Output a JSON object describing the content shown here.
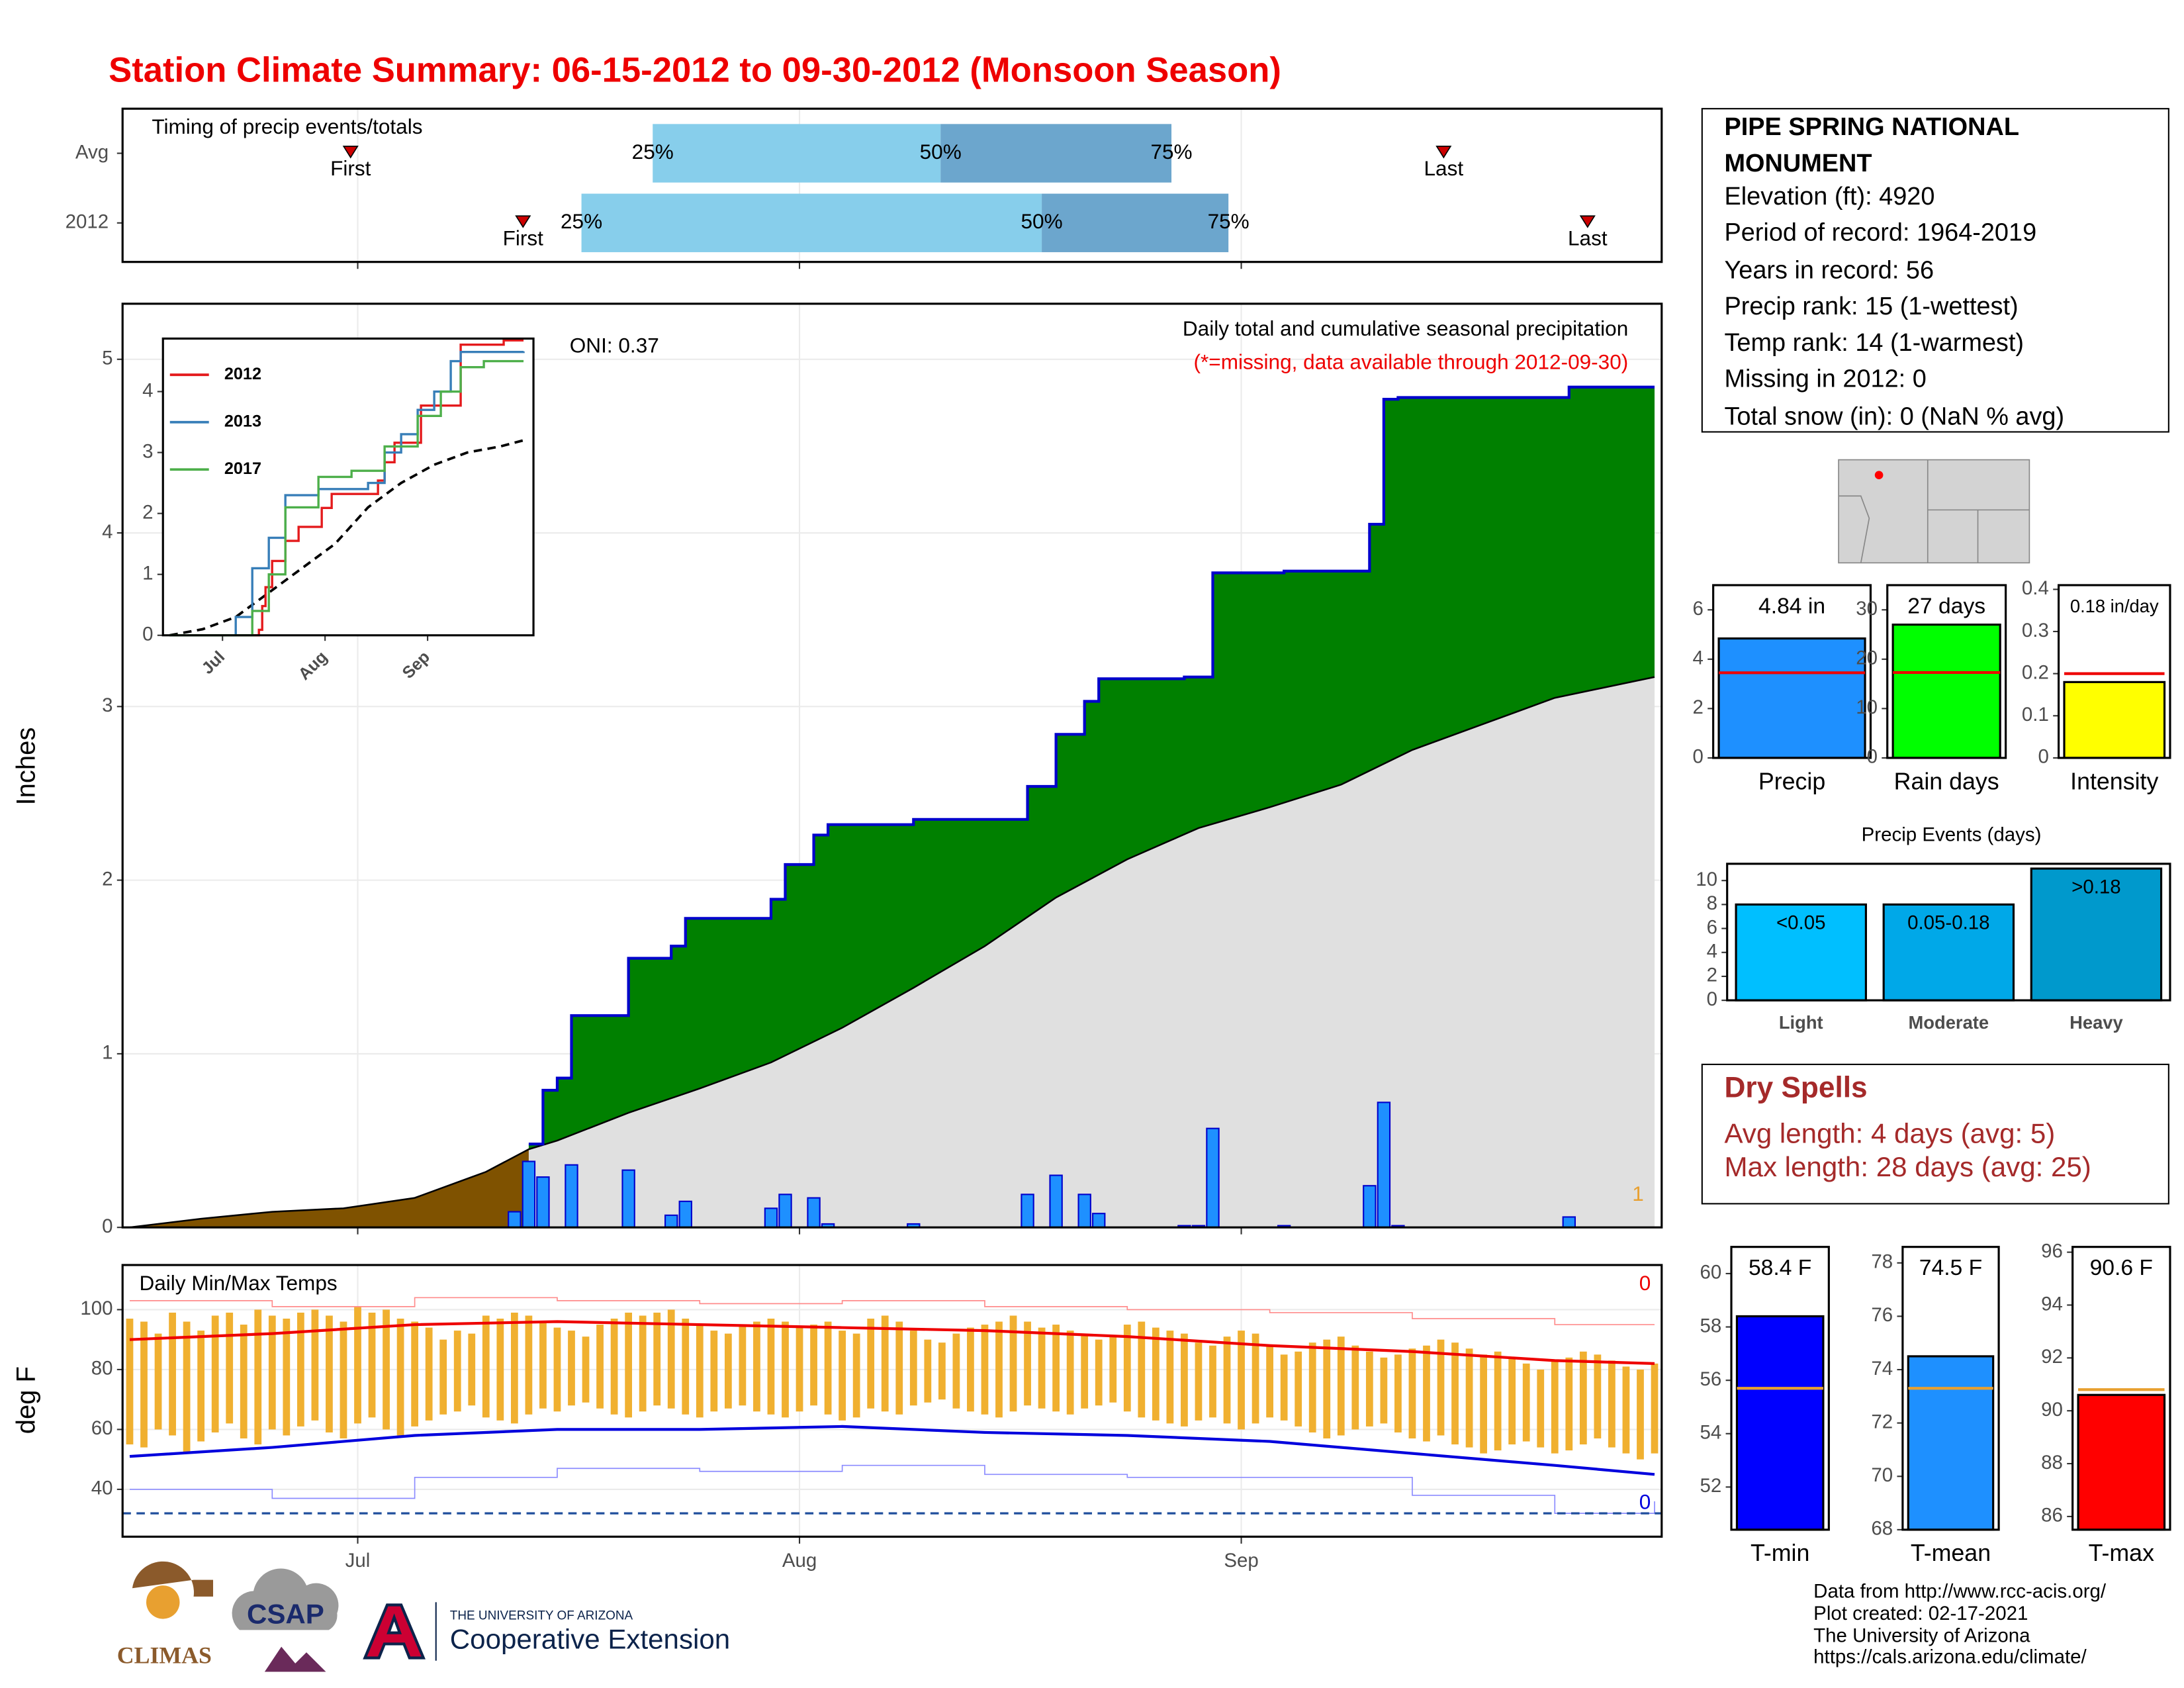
{
  "title": "Station Climate Summary: 06-15-2012 to 09-30-2012 (Monsoon Season)",
  "station": {
    "name": "PIPE SPRING NATIONAL MONUMENT",
    "lines": [
      "Elevation (ft): 4920",
      "Period of record: 1964-2019",
      "Years in record: 56",
      "Precip rank: 15 (1-wettest)",
      "Temp rank: 14 (1-warmest)",
      "Missing in 2012: 0",
      "Total snow (in): 0 (NaN % avg)"
    ]
  },
  "dry_spells": {
    "title": "Dry Spells",
    "lines": [
      "Avg length: 4 days (avg: 5)",
      "Max length: 28 days (avg: 25)"
    ]
  },
  "credits": [
    "Data from http://www.rcc-acis.org/",
    "Plot created: 02-17-2021",
    "The University of Arizona",
    "https://cals.arizona.edu/climate/"
  ],
  "logos": {
    "climas": "CLIMAS",
    "csap": "CSAP",
    "university": "THE UNIVERSITY OF ARIZONA",
    "extension": "Cooperative Extension"
  },
  "chart_data": [
    {
      "type": "timeline",
      "title": "Timing of precip events/totals",
      "marker_labels": [
        "First",
        "25%",
        "50%",
        "75%",
        "Last"
      ],
      "series": [
        {
          "name": "Avg",
          "values": [
            15.5,
            36.7,
            56.9,
            73.1,
            92.2
          ]
        },
        {
          "name": "2012",
          "values": [
            27.6,
            31.7,
            64.0,
            77.1,
            102.3
          ]
        }
      ],
      "colors": [
        "#87ceeb",
        "#6ca6cd"
      ],
      "marker_color": "#cc0000",
      "xlim": [
        -0.5,
        107.5
      ],
      "xticks": [
        16,
        47,
        78
      ]
    },
    {
      "type": "area",
      "title": "Daily total and cumulative seasonal precipitation",
      "subtitle": "(*=missing, data available through 2012-09-30)",
      "annotation": "ONI: 0.37",
      "ylabel": "Inches",
      "corner_label": "1",
      "xlim": [
        -0.5,
        107.5
      ],
      "xticks": [
        16,
        47,
        78
      ],
      "ylim": [
        0,
        5.32
      ],
      "yticks": [
        0,
        1,
        2,
        3,
        4,
        5
      ],
      "grid": true,
      "daily": {
        "color": "#1e90ff",
        "x": [
          27,
          28,
          29,
          31,
          35,
          38,
          39,
          45,
          46,
          48,
          49,
          55,
          63,
          65,
          67,
          68,
          74,
          75,
          76,
          81,
          87,
          88,
          89,
          101
        ],
        "values": [
          0.09,
          0.38,
          0.29,
          0.36,
          0.33,
          0.07,
          0.15,
          0.11,
          0.19,
          0.17,
          0.02,
          0.02,
          0.19,
          0.3,
          0.19,
          0.08,
          0.01,
          0.01,
          0.57,
          0.01,
          0.24,
          0.72,
          0.01,
          0.06
        ]
      },
      "cumulative": {
        "color": "#0000cc",
        "fill": "#008000",
        "x": [
          28,
          29,
          30,
          31,
          35,
          38,
          39,
          45,
          46,
          48,
          49,
          55,
          63,
          65,
          67,
          68,
          74,
          76,
          81,
          87,
          88,
          89,
          101,
          107
        ],
        "values": [
          0.48,
          0.79,
          0.86,
          1.22,
          1.55,
          1.62,
          1.78,
          1.89,
          2.09,
          2.26,
          2.32,
          2.35,
          2.54,
          2.84,
          3.03,
          3.16,
          3.17,
          3.77,
          3.78,
          4.05,
          4.77,
          4.78,
          4.84,
          4.84
        ]
      },
      "average": {
        "color": "#000000",
        "fill": "#e0e0e0",
        "early_fill": "#7f5200",
        "x": [
          0,
          5,
          10,
          15,
          20,
          25,
          28,
          30,
          35,
          40,
          45,
          50,
          55,
          60,
          65,
          70,
          75,
          80,
          85,
          90,
          95,
          100,
          107
        ],
        "values": [
          0,
          0.05,
          0.09,
          0.11,
          0.17,
          0.32,
          0.45,
          0.5,
          0.66,
          0.8,
          0.95,
          1.15,
          1.38,
          1.62,
          1.9,
          2.12,
          2.3,
          2.42,
          2.55,
          2.75,
          2.9,
          3.05,
          3.17
        ]
      }
    },
    {
      "type": "line",
      "xlim": [
        -2,
        110
      ],
      "xticks": [
        {
          "value": 16,
          "label": "Jul"
        },
        {
          "value": 47,
          "label": "Aug"
        },
        {
          "value": 78,
          "label": "Sep"
        }
      ],
      "ylim": [
        0,
        4.87
      ],
      "yticks": [
        0,
        1,
        2,
        3,
        4
      ],
      "series": [
        {
          "name": "2012",
          "color": "#e41a1c",
          "x": [
            0,
            27,
            28,
            29,
            31,
            35,
            39,
            46,
            49,
            63,
            65,
            68,
            76,
            88,
            101,
            107
          ],
          "values": [
            0,
            0.09,
            0.48,
            0.79,
            1.22,
            1.55,
            1.78,
            2.09,
            2.32,
            2.54,
            2.84,
            3.16,
            3.77,
            4.77,
            4.84,
            4.84
          ]
        },
        {
          "name": "2013",
          "color": "#377eb8",
          "x": [
            0,
            20,
            25,
            30,
            35,
            45,
            60,
            65,
            70,
            75,
            80,
            85,
            88,
            107
          ],
          "values": [
            0,
            0.3,
            1.1,
            1.6,
            2.3,
            2.4,
            2.5,
            3.0,
            3.3,
            3.7,
            4.0,
            4.5,
            4.65,
            4.66
          ]
        },
        {
          "name": "2017",
          "color": "#4daf4a",
          "x": [
            0,
            25,
            30,
            35,
            45,
            55,
            65,
            75,
            82,
            88,
            95,
            107
          ],
          "values": [
            0,
            0.4,
            1.0,
            2.1,
            2.6,
            2.7,
            3.1,
            3.6,
            4.0,
            4.4,
            4.5,
            4.5
          ]
        }
      ],
      "average": {
        "color": "#000000",
        "x": [
          0,
          10,
          20,
          30,
          40,
          50,
          60,
          70,
          80,
          90,
          100,
          107
        ],
        "values": [
          0,
          0.1,
          0.3,
          0.7,
          1.1,
          1.5,
          2.1,
          2.5,
          2.8,
          3.0,
          3.1,
          3.2
        ]
      }
    },
    {
      "type": "range",
      "title": "Daily Min/Max Temps",
      "ylabel": "deg F",
      "xlim": [
        -0.5,
        107.5
      ],
      "xticks": [
        {
          "value": 16,
          "label": "Jul"
        },
        {
          "value": 47,
          "label": "Aug"
        },
        {
          "value": 78,
          "label": "Sep"
        }
      ],
      "ylim": [
        24.2,
        114.9
      ],
      "yticks": [
        40,
        60,
        80,
        100
      ],
      "grid": true,
      "bar_color": "#f0b030",
      "x": [
        0,
        1,
        2,
        3,
        4,
        5,
        6,
        7,
        8,
        9,
        10,
        11,
        12,
        13,
        14,
        15,
        16,
        17,
        18,
        19,
        20,
        21,
        22,
        23,
        24,
        25,
        26,
        27,
        28,
        29,
        30,
        31,
        32,
        33,
        34,
        35,
        36,
        37,
        38,
        39,
        40,
        41,
        42,
        43,
        44,
        45,
        46,
        47,
        48,
        49,
        50,
        51,
        52,
        53,
        54,
        55,
        56,
        57,
        58,
        59,
        60,
        61,
        62,
        63,
        64,
        65,
        66,
        67,
        68,
        69,
        70,
        71,
        72,
        73,
        74,
        75,
        76,
        77,
        78,
        79,
        80,
        81,
        82,
        83,
        84,
        85,
        86,
        87,
        88,
        89,
        90,
        91,
        92,
        93,
        94,
        95,
        96,
        97,
        98,
        99,
        100,
        101,
        102,
        103,
        104,
        105,
        106,
        107
      ],
      "daily_max": [
        97,
        96,
        92,
        99,
        96,
        93,
        98,
        99,
        95,
        100,
        98,
        97,
        99,
        100,
        98,
        96,
        101,
        99,
        100,
        97,
        96,
        94,
        90,
        93,
        92,
        98,
        97,
        99,
        98,
        96,
        94,
        93,
        91,
        95,
        97,
        99,
        98,
        99,
        100,
        97,
        95,
        93,
        92,
        95,
        96,
        97,
        96,
        94,
        95,
        96,
        93,
        92,
        97,
        98,
        96,
        93,
        90,
        89,
        92,
        94,
        95,
        96,
        98,
        96,
        94,
        95,
        93,
        92,
        90,
        91,
        95,
        96,
        94,
        93,
        92,
        89,
        88,
        91,
        93,
        92,
        88,
        85,
        86,
        89,
        90,
        91,
        88,
        86,
        84,
        85,
        87,
        88,
        90,
        89,
        87,
        85,
        86,
        84,
        82,
        80,
        83,
        84,
        86,
        85,
        83,
        81,
        80,
        82
      ],
      "daily_min": [
        55,
        54,
        60,
        58,
        52,
        56,
        59,
        62,
        57,
        55,
        60,
        58,
        61,
        63,
        59,
        57,
        62,
        64,
        60,
        58,
        61,
        63,
        65,
        66,
        68,
        64,
        63,
        62,
        65,
        67,
        66,
        68,
        69,
        67,
        65,
        64,
        66,
        68,
        67,
        65,
        64,
        66,
        67,
        68,
        66,
        65,
        64,
        66,
        68,
        65,
        63,
        64,
        67,
        66,
        65,
        68,
        69,
        70,
        67,
        66,
        65,
        64,
        66,
        68,
        67,
        66,
        65,
        67,
        68,
        69,
        66,
        64,
        63,
        62,
        61,
        63,
        64,
        62,
        60,
        62,
        64,
        63,
        61,
        59,
        57,
        58,
        60,
        61,
        62,
        59,
        57,
        56,
        58,
        55,
        54,
        52,
        53,
        55,
        56,
        54,
        52,
        53,
        55,
        57,
        54,
        52,
        50,
        52
      ],
      "avg_max": {
        "color": "#ee0000",
        "x": [
          0,
          10,
          20,
          30,
          40,
          50,
          60,
          70,
          80,
          90,
          100,
          107
        ],
        "values": [
          90,
          92,
          95,
          96,
          95,
          94,
          93,
          91,
          88,
          86,
          83,
          82
        ]
      },
      "avg_min": {
        "color": "#0000dd",
        "x": [
          0,
          10,
          20,
          30,
          40,
          50,
          60,
          70,
          80,
          90,
          100,
          107
        ],
        "values": [
          51,
          54,
          58,
          60,
          60,
          61,
          59,
          58,
          56,
          52,
          48,
          45
        ]
      },
      "record_max": {
        "color": "#ff8c8c",
        "x": [
          0,
          10,
          20,
          30,
          40,
          50,
          60,
          70,
          80,
          90,
          100,
          107
        ],
        "values": [
          103,
          101,
          104,
          103,
          102,
          103,
          101,
          100,
          99,
          97,
          95,
          95
        ]
      },
      "record_min": {
        "color": "#8c8cff",
        "x": [
          0,
          10,
          20,
          30,
          40,
          50,
          60,
          70,
          80,
          90,
          100,
          107
        ],
        "values": [
          40,
          37,
          44,
          47,
          46,
          48,
          45,
          44,
          44,
          38,
          32,
          36
        ]
      },
      "freeze_line": 32,
      "high_count": 0,
      "low_count": 0
    },
    {
      "type": "bar",
      "categories": [
        "Precip"
      ],
      "values": [
        4.84
      ],
      "value_labels": [
        "4.84 in"
      ],
      "average": 3.45,
      "average_color": "#ee0000",
      "color": "#1e90ff",
      "ylim": [
        0,
        7
      ],
      "yticks": [
        0,
        2,
        4,
        6
      ]
    },
    {
      "type": "bar",
      "categories": [
        "Rain days"
      ],
      "values": [
        27
      ],
      "value_labels": [
        "27 days"
      ],
      "average": 17.3,
      "average_color": "#ee0000",
      "color": "#00ff00",
      "ylim": [
        0,
        35
      ],
      "yticks": [
        0,
        10,
        20,
        30
      ]
    },
    {
      "type": "bar",
      "categories": [
        "Intensity"
      ],
      "values": [
        0.18
      ],
      "value_labels": [
        "0.18 in/day"
      ],
      "average": 0.2,
      "average_color": "#ee0000",
      "color": "#ffff00",
      "ylim": [
        0,
        0.41
      ],
      "yticks": [
        0.0,
        0.1,
        0.2,
        0.3,
        0.4
      ]
    },
    {
      "type": "bar",
      "title": "Precip Events (days)",
      "categories": [
        "Light",
        "Moderate",
        "Heavy"
      ],
      "values": [
        8,
        8,
        11
      ],
      "bin_labels": [
        "<0.05",
        "0.05-0.18",
        ">0.18"
      ],
      "colors": [
        "#00bfff",
        "#00a8e8",
        "#0099cc"
      ],
      "ylim": [
        0,
        11.4
      ],
      "yticks": [
        0,
        2,
        4,
        6,
        8,
        10
      ]
    },
    {
      "type": "bar",
      "categories": [
        "T-min"
      ],
      "values": [
        58.4
      ],
      "value_labels": [
        "58.4 F"
      ],
      "average": 55.7,
      "average_color": "#e8a030",
      "color": "#0000ff",
      "ylim": [
        50.4,
        61
      ],
      "yticks": [
        52,
        54,
        56,
        58,
        60
      ]
    },
    {
      "type": "bar",
      "categories": [
        "T-mean"
      ],
      "values": [
        74.5
      ],
      "value_labels": [
        "74.5 F"
      ],
      "average": 73.3,
      "average_color": "#e8a030",
      "color": "#1e90ff",
      "ylim": [
        68,
        78.6
      ],
      "yticks": [
        68,
        70,
        72,
        74,
        76,
        78
      ]
    },
    {
      "type": "bar",
      "categories": [
        "T-max"
      ],
      "values": [
        90.6
      ],
      "value_labels": [
        "90.6 F"
      ],
      "average": 90.8,
      "average_color": "#e8a030",
      "color": "#ff0000",
      "ylim": [
        85.5,
        96.2
      ],
      "yticks": [
        86,
        88,
        90,
        92,
        94,
        96
      ]
    }
  ]
}
